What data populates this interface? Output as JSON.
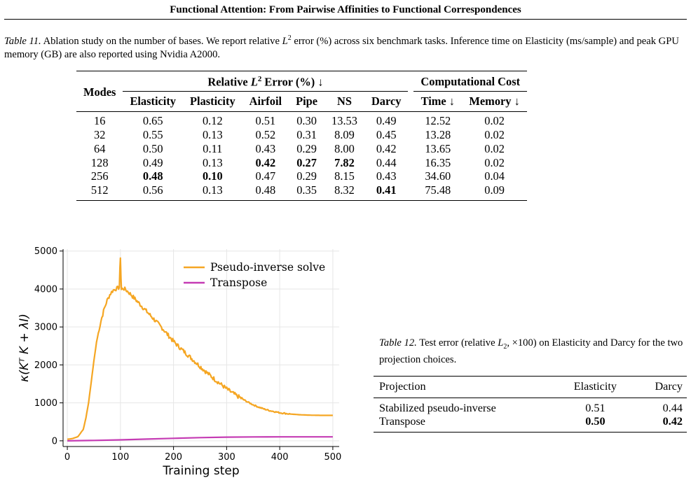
{
  "running_head": "Functional Attention: From Pairwise Affinities to Functional Correspondences",
  "table11": {
    "label": "Table 11.",
    "caption_a": "Ablation study on the number of bases. We report relative ",
    "caption_math": "L",
    "caption_sup": "2",
    "caption_b": " error (%) across six benchmark tasks. Inference time on Elasticity (ms/sample) and peak GPU memory (GB) are also reported using Nvidia A2000.",
    "modes_header": "Modes",
    "group_error_a": "Relative ",
    "group_error_math": "L",
    "group_error_sup": "2",
    "group_error_b": " Error (%) ↓",
    "group_cost": "Computational Cost",
    "columns": [
      "Elasticity",
      "Plasticity",
      "Airfoil",
      "Pipe",
      "NS",
      "Darcy",
      "Time ↓",
      "Memory ↓"
    ],
    "rows": [
      {
        "mode": "16",
        "cells": [
          "0.65",
          "0.12",
          "0.51",
          "0.30",
          "13.53",
          "0.49",
          "12.52",
          "0.02"
        ]
      },
      {
        "mode": "32",
        "cells": [
          "0.55",
          "0.13",
          "0.52",
          "0.31",
          "8.09",
          "0.45",
          "13.28",
          "0.02"
        ]
      },
      {
        "mode": "64",
        "cells": [
          "0.50",
          "0.11",
          "0.43",
          "0.29",
          "8.00",
          "0.42",
          "13.65",
          "0.02"
        ]
      },
      {
        "mode": "128",
        "cells": [
          "0.49",
          "0.13",
          "0.42",
          "0.27",
          "7.82",
          "0.44",
          "16.35",
          "0.02"
        ]
      },
      {
        "mode": "256",
        "cells": [
          "0.48",
          "0.10",
          "0.47",
          "0.29",
          "8.15",
          "0.43",
          "34.60",
          "0.04"
        ]
      },
      {
        "mode": "512",
        "cells": [
          "0.56",
          "0.13",
          "0.48",
          "0.35",
          "8.32",
          "0.41",
          "75.48",
          "0.09"
        ]
      }
    ],
    "bold_cells": [
      [
        3,
        2
      ],
      [
        3,
        3
      ],
      [
        3,
        4
      ],
      [
        4,
        0
      ],
      [
        4,
        1
      ],
      [
        5,
        5
      ]
    ]
  },
  "chart_data": {
    "type": "line",
    "title": "",
    "xlabel": "Training step",
    "ylabel": "κ(Kᵀ K + λI)",
    "xlim": [
      -8,
      512
    ],
    "ylim": [
      -150,
      5050
    ],
    "xticks": [
      0,
      100,
      200,
      300,
      400,
      500
    ],
    "yticks": [
      0,
      1000,
      2000,
      3000,
      4000,
      5000
    ],
    "grid": true,
    "legend_position": "top-right",
    "series": [
      {
        "name": "Pseudo-inverse solve",
        "color": "#f5a623",
        "x": [
          0,
          10,
          20,
          30,
          35,
          40,
          45,
          50,
          55,
          60,
          65,
          70,
          75,
          80,
          85,
          90,
          95,
          98,
          99,
          100,
          101,
          102,
          105,
          110,
          115,
          120,
          130,
          140,
          150,
          160,
          170,
          180,
          190,
          200,
          210,
          220,
          230,
          240,
          250,
          260,
          270,
          280,
          290,
          300,
          310,
          320,
          330,
          340,
          350,
          360,
          370,
          380,
          390,
          400,
          420,
          440,
          460,
          480,
          500
        ],
        "y": [
          40,
          60,
          110,
          300,
          600,
          1000,
          1550,
          2100,
          2600,
          2950,
          3250,
          3500,
          3700,
          3850,
          3950,
          4000,
          4020,
          4050,
          4500,
          4850,
          4300,
          3980,
          4020,
          3980,
          3920,
          3850,
          3700,
          3550,
          3400,
          3250,
          3100,
          2950,
          2780,
          2620,
          2480,
          2350,
          2220,
          2090,
          1960,
          1830,
          1710,
          1590,
          1480,
          1370,
          1270,
          1180,
          1100,
          1020,
          950,
          890,
          840,
          800,
          770,
          740,
          705,
          685,
          675,
          670,
          670
        ]
      },
      {
        "name": "Transpose",
        "color": "#c53cb4",
        "x": [
          0,
          50,
          100,
          150,
          200,
          250,
          300,
          350,
          400,
          450,
          500
        ],
        "y": [
          0,
          10,
          25,
          45,
          65,
          85,
          98,
          103,
          104,
          104,
          104
        ]
      }
    ]
  },
  "table12": {
    "label": "Table 12.",
    "caption_a": "Test error (relative ",
    "caption_math": "L",
    "caption_sub": "2",
    "caption_b": ", ×100) on Elasticity and Darcy for the two projection choices.",
    "headers": [
      "Projection",
      "Elasticity",
      "Darcy"
    ],
    "rows": [
      {
        "name": "Stabilized pseudo-inverse",
        "elasticity": "0.51",
        "darcy": "0.44"
      },
      {
        "name": "Transpose",
        "elasticity": "0.50",
        "darcy": "0.42"
      }
    ],
    "bold_row": 1
  }
}
